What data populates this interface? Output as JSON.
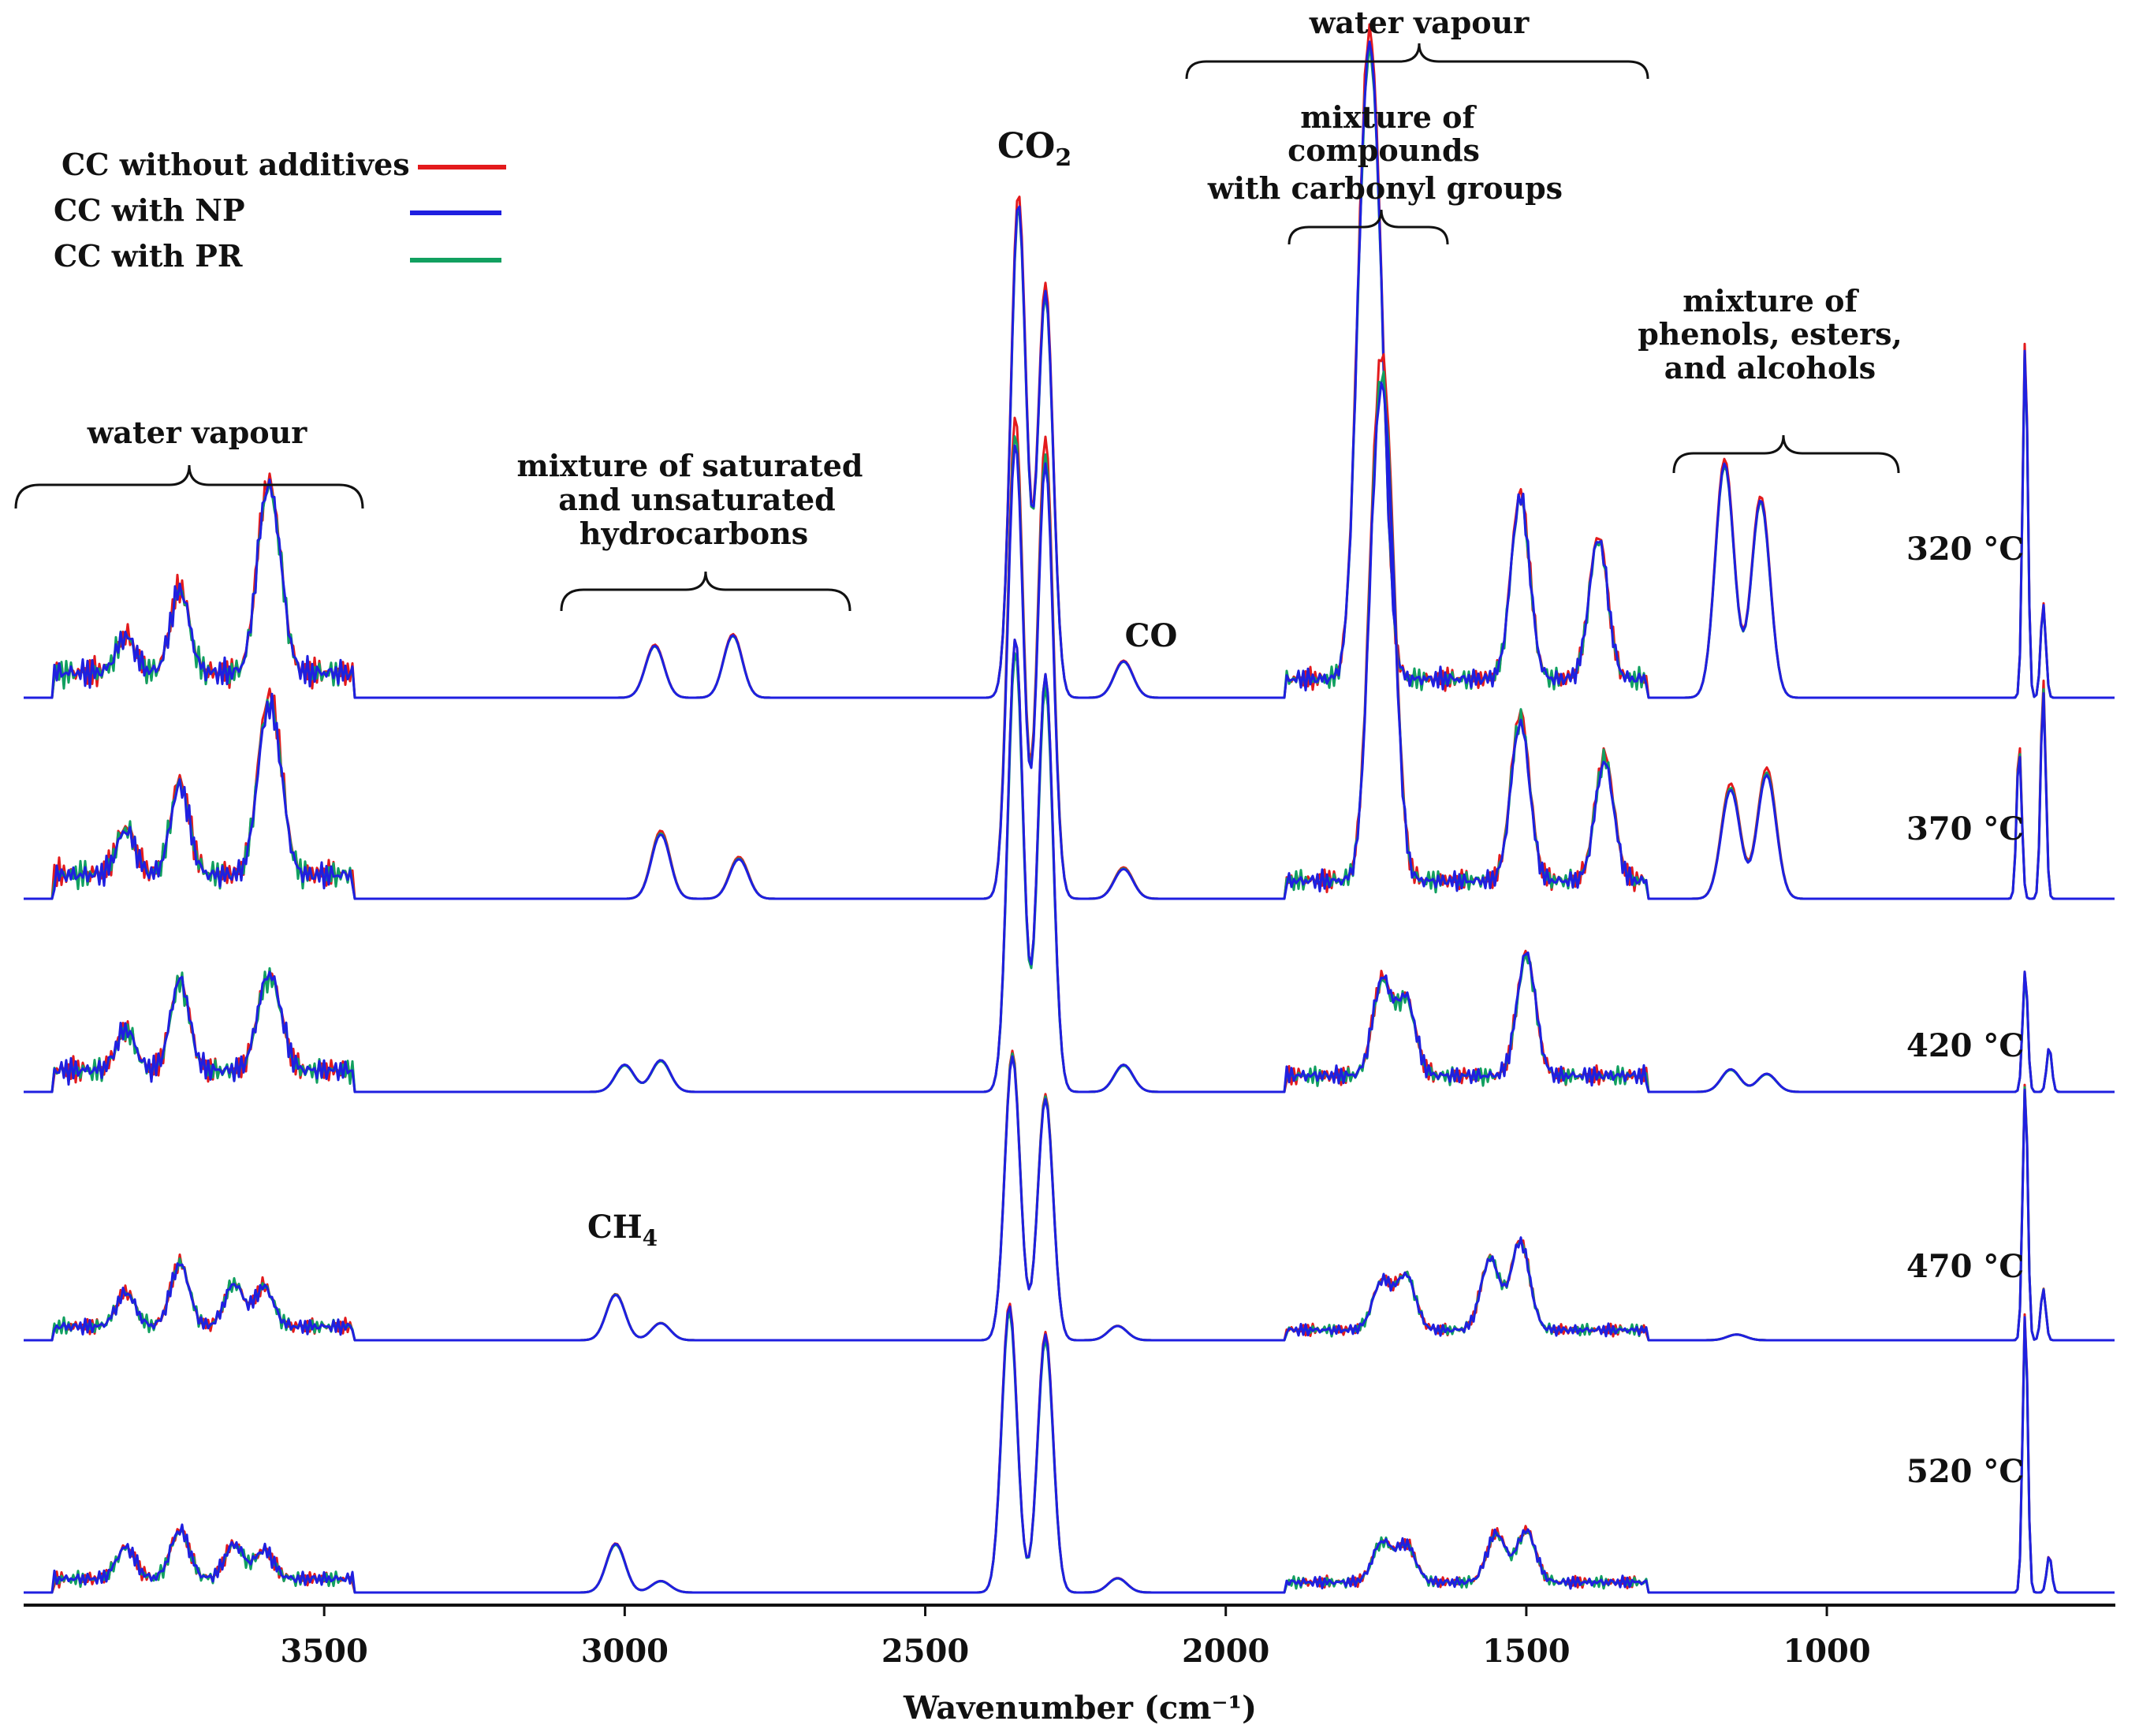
{
  "chart_data": {
    "type": "line",
    "title": "",
    "xlabel": "Wavenumber (cm⁻¹)",
    "ylabel": "",
    "xlim": [
      4000,
      520
    ],
    "x_reversed": true,
    "grid": false,
    "xticks": [
      {
        "value": 3500,
        "label": "3500"
      },
      {
        "value": 3000,
        "label": "3000"
      },
      {
        "value": 2500,
        "label": "2500"
      },
      {
        "value": 2000,
        "label": "2000"
      },
      {
        "value": 1500,
        "label": "1500"
      },
      {
        "value": 1000,
        "label": "1000"
      }
    ],
    "legend": {
      "placement": "top-left",
      "entries": [
        {
          "label": "CC without additives",
          "color": "#e31a1c"
        },
        {
          "label": "CC with NP",
          "color": "#1f1fe0"
        },
        {
          "label": "CC with PR",
          "color": "#11a060"
        }
      ]
    },
    "series_colors": {
      "without": "#e31a1c",
      "np": "#1f1fe0",
      "pr": "#11a060"
    },
    "traces": [
      {
        "temperature": "320 °C",
        "peaks": [
          [
            3740,
            0.16
          ],
          [
            3600,
            0.25
          ],
          [
            3580,
            0.19
          ],
          [
            3830,
            0.07
          ],
          [
            2950,
            0.1
          ],
          [
            2820,
            0.12
          ],
          [
            2345,
            0.95
          ],
          [
            2300,
            0.78
          ],
          [
            2170,
            0.07
          ],
          [
            1770,
            0.77
          ],
          [
            1750,
            0.73
          ],
          [
            1510,
            0.35
          ],
          [
            1380,
            0.27
          ],
          [
            1170,
            0.45
          ],
          [
            1110,
            0.38
          ],
          [
            670,
            0.68
          ],
          [
            640,
            0.18
          ]
        ],
        "amp_diff": {
          "without": 0.02,
          "np": 0.0,
          "pr": -0.01
        }
      },
      {
        "temperature": "370 °C",
        "peaks": [
          [
            3740,
            0.18
          ],
          [
            3600,
            0.22
          ],
          [
            3580,
            0.2
          ],
          [
            3830,
            0.09
          ],
          [
            2940,
            0.13
          ],
          [
            2810,
            0.08
          ],
          [
            2350,
            0.92
          ],
          [
            2300,
            0.88
          ],
          [
            2170,
            0.06
          ],
          [
            1750,
            0.63
          ],
          [
            1730,
            0.6
          ],
          [
            1510,
            0.32
          ],
          [
            1370,
            0.24
          ],
          [
            1160,
            0.22
          ],
          [
            1100,
            0.25
          ],
          [
            680,
            0.3
          ],
          [
            640,
            0.42
          ]
        ],
        "amp_diff": {
          "without": 0.04,
          "np": -0.02,
          "pr": 0.0
        }
      },
      {
        "temperature": "420 °C",
        "peaks": [
          [
            3740,
            0.2
          ],
          [
            3600,
            0.14
          ],
          [
            3580,
            0.12
          ],
          [
            3830,
            0.09
          ],
          [
            3000,
            0.06
          ],
          [
            2940,
            0.07
          ],
          [
            2350,
            1.0
          ],
          [
            2300,
            0.92
          ],
          [
            2170,
            0.06
          ],
          [
            1740,
            0.21
          ],
          [
            1700,
            0.17
          ],
          [
            1500,
            0.27
          ],
          [
            1160,
            0.05
          ],
          [
            1100,
            0.04
          ],
          [
            670,
            0.27
          ],
          [
            630,
            0.1
          ]
        ],
        "amp_diff": {
          "without": 0.01,
          "np": 0.01,
          "pr": -0.02
        }
      },
      {
        "temperature": "470 °C",
        "peaks": [
          [
            3740,
            0.22
          ],
          [
            3650,
            0.15
          ],
          [
            3600,
            0.14
          ],
          [
            3830,
            0.12
          ],
          [
            3015,
            0.16
          ],
          [
            2940,
            0.06
          ],
          [
            2355,
            1.0
          ],
          [
            2300,
            0.85
          ],
          [
            2180,
            0.05
          ],
          [
            1740,
            0.17
          ],
          [
            1700,
            0.19
          ],
          [
            1510,
            0.31
          ],
          [
            1560,
            0.25
          ],
          [
            1150,
            0.02
          ],
          [
            670,
            0.9
          ],
          [
            640,
            0.18
          ]
        ],
        "amp_diff": {
          "without": 0.02,
          "np": 0.0,
          "pr": 0.01
        }
      },
      {
        "temperature": "520 °C",
        "peaks": [
          [
            3740,
            0.17
          ],
          [
            3650,
            0.12
          ],
          [
            3600,
            0.1
          ],
          [
            3830,
            0.11
          ],
          [
            3015,
            0.17
          ],
          [
            2940,
            0.04
          ],
          [
            2360,
            1.0
          ],
          [
            2300,
            0.9
          ],
          [
            2180,
            0.05
          ],
          [
            1740,
            0.14
          ],
          [
            1700,
            0.13
          ],
          [
            1550,
            0.17
          ],
          [
            1500,
            0.18
          ],
          [
            670,
            0.98
          ],
          [
            630,
            0.13
          ]
        ],
        "amp_diff": {
          "without": 0.02,
          "np": 0.01,
          "pr": -0.01
        }
      }
    ],
    "annotations": [
      {
        "text": "water vapour",
        "from_x": 4000,
        "to_x": 3420
      },
      {
        "text": "mixture of saturated and unsaturated hydrocarbons",
        "from_x": 3120,
        "to_x": 2650
      },
      {
        "text": "CO2",
        "at_x": 2340
      },
      {
        "text": "CO",
        "at_x": 2160
      },
      {
        "text": "water vapour",
        "from_x": 2100,
        "to_x": 1340
      },
      {
        "text": "mixture of compounds with carbonyl groups",
        "from_x": 1930,
        "to_x": 1660
      },
      {
        "text": "mixture of phenols, esters, and alcohols",
        "from_x": 1300,
        "to_x": 930
      },
      {
        "text": "CH4",
        "at_x": 3010
      }
    ]
  },
  "labels": {
    "legend_1": "CC without additives",
    "legend_2": "CC with NP",
    "legend_3": "CC with PR",
    "water_left": "water vapour",
    "hydro_1": "mixture of saturated",
    "hydro_2": "and unsaturated",
    "hydro_3": "hydrocarbons",
    "co2_main": "CO",
    "co2_sub": "2",
    "co": "CO",
    "water_right": "water vapour",
    "carbonyl_1": "mixture of",
    "carbonyl_2": "compounds",
    "carbonyl_3": "with carbonyl groups",
    "phenol_1": "mixture of",
    "phenol_2": "phenols, esters,",
    "phenol_3": "and alcohols",
    "ch4_main": "CH",
    "ch4_sub": "4",
    "temp_320": "320 °C",
    "temp_370": "370 °C",
    "temp_420": "420 °C",
    "temp_470": "470 °C",
    "temp_520": "520 °C",
    "xaxis_title": "Wavenumber (cm⁻¹)"
  }
}
